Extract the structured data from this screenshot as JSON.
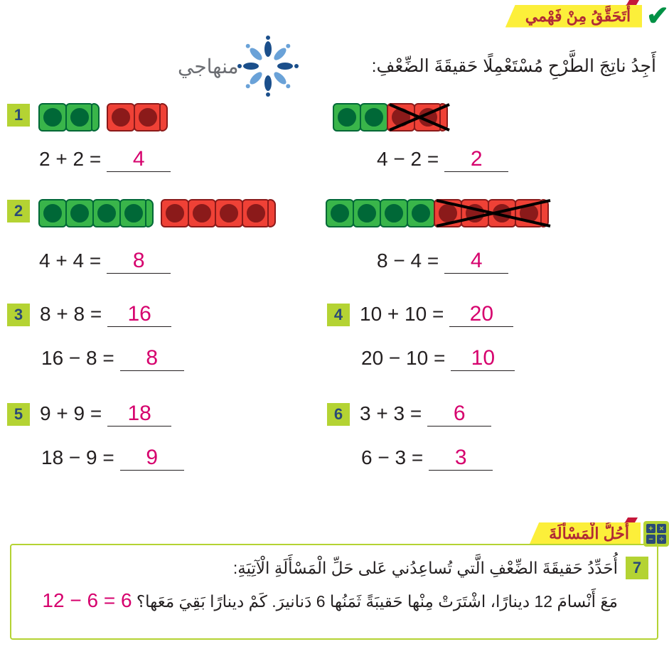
{
  "colors": {
    "green_cube_border": "#006837",
    "green_cube_fill": "#39b54a",
    "green_dot": "#006837",
    "red_cube_border": "#8b1a1a",
    "red_cube_fill": "#ef4136",
    "red_dot": "#8b1a1a",
    "answer": "#d6006d",
    "lime": "#b4d333",
    "banner_bg": "#fcef3a",
    "banner_text": "#b12b35",
    "text": "#231f20",
    "logo_text": "#6b6d72",
    "logo_petals": [
      "#1b4f8b",
      "#6aa2d8",
      "#1b4f8b",
      "#6aa2d8",
      "#1b4f8b",
      "#6aa2d8",
      "#1b4f8b",
      "#6aa2d8"
    ]
  },
  "header_title": "أَتَحَقَّقُ مِنْ فَهْمي",
  "instruction": "أَجِدُ ناتِجَ الطَّرْحِ مُسْتَعْمِلًا حَقيقَةَ الضِّعْفِ:",
  "logo_text": "منهاجي",
  "ex1": {
    "num": "1",
    "left_eq": "2 + 2 =",
    "left_ans": "4",
    "right_eq": "4 − 2 =",
    "right_ans": "2",
    "left_green": 2,
    "left_red": 2,
    "right_green": 2,
    "right_red": 2,
    "right_crossed_red": 2
  },
  "ex2": {
    "num": "2",
    "left_eq": "4 + 4 =",
    "left_ans": "8",
    "right_eq": "8 − 4 =",
    "right_ans": "4",
    "left_green": 4,
    "left_red": 4,
    "right_green": 4,
    "right_red": 4,
    "right_crossed_red": 4
  },
  "ex3": {
    "num": "3",
    "a_eq": "8 + 8 =",
    "a_ans": "16",
    "b_eq": "16 − 8 =",
    "b_ans": "8"
  },
  "ex4": {
    "num": "4",
    "a_eq": "10 + 10 =",
    "a_ans": "20",
    "b_eq": "20 − 10 =",
    "b_ans": "10"
  },
  "ex5": {
    "num": "5",
    "a_eq": "9 + 9 =",
    "a_ans": "18",
    "b_eq": "18 − 9 =",
    "b_ans": "9"
  },
  "ex6": {
    "num": "6",
    "a_eq": "3 + 3 =",
    "a_ans": "6",
    "b_eq": "6 − 3 =",
    "b_ans": "3"
  },
  "solve": {
    "title": "أَحُلُّ الْمَسْأَلَةَ",
    "num": "7",
    "line1": "أُحَدِّدُ حَقيقَةَ الضِّعْفِ الَّتي تُساعِدُني عَلى حَلِّ الْمَسْأَلَةِ الْآتِيَةِ:",
    "line2": "مَعَ أَنْسامَ 12 دينارًا، اشْتَرَتْ مِنْها حَقيبَةً ثَمَنُها 6 دَنانيرَ. كَمْ دينارًا بَقِيَ مَعَها؟",
    "answer": "12 − 6 = 6"
  },
  "icons": {
    "plus": "+",
    "minus": "−",
    "times": "×",
    "divide": "÷"
  }
}
